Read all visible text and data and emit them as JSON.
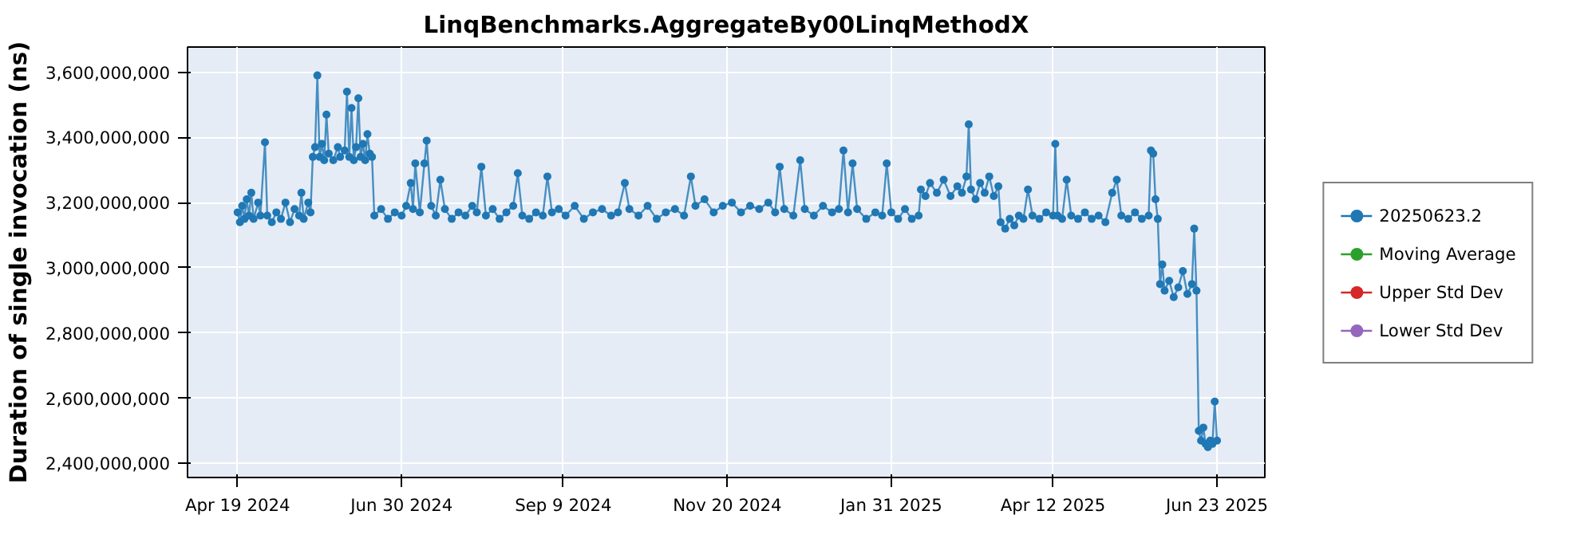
{
  "chart_data": {
    "type": "line",
    "title": "LinqBenchmarks.AggregateBy00LinqMethodX",
    "ylabel": "Duration of single invocation (ns)",
    "xlim": [
      "2024-03-28",
      "2025-07-14"
    ],
    "xticks": [
      {
        "value": "2024-04-19",
        "label": "Apr 19 2024"
      },
      {
        "value": "2024-06-30",
        "label": "Jun 30 2024"
      },
      {
        "value": "2024-09-09",
        "label": "Sep 9 2024"
      },
      {
        "value": "2024-11-20",
        "label": "Nov 20 2024"
      },
      {
        "value": "2025-01-31",
        "label": "Jan 31 2025"
      },
      {
        "value": "2025-04-12",
        "label": "Apr 12 2025"
      },
      {
        "value": "2025-06-23",
        "label": "Jun 23 2025"
      }
    ],
    "ylim": [
      2357000000,
      3677000000
    ],
    "yticks": [
      {
        "value": 2400000000,
        "label": "2,400,000,000"
      },
      {
        "value": 2600000000,
        "label": "2,600,000,000"
      },
      {
        "value": 2800000000,
        "label": "2,800,000,000"
      },
      {
        "value": 3000000000,
        "label": "3,000,000,000"
      },
      {
        "value": 3200000000,
        "label": "3,200,000,000"
      },
      {
        "value": 3400000000,
        "label": "3,400,000,000"
      },
      {
        "value": 3600000000,
        "label": "3,600,000,000"
      }
    ],
    "grid": true,
    "legend": "right",
    "marker": "circle",
    "line_style": "solid",
    "x": [
      "2024-04-19",
      "2024-04-20",
      "2024-04-21",
      "2024-04-22",
      "2024-04-23",
      "2024-04-24",
      "2024-04-25",
      "2024-04-26",
      "2024-04-28",
      "2024-04-29",
      "2024-05-01",
      "2024-05-02",
      "2024-05-04",
      "2024-05-06",
      "2024-05-08",
      "2024-05-10",
      "2024-05-12",
      "2024-05-14",
      "2024-05-16",
      "2024-05-17",
      "2024-05-18",
      "2024-05-20",
      "2024-05-21",
      "2024-05-22",
      "2024-05-23",
      "2024-05-24",
      "2024-05-25",
      "2024-05-26",
      "2024-05-27",
      "2024-05-28",
      "2024-05-29",
      "2024-05-31",
      "2024-06-02",
      "2024-06-03",
      "2024-06-05",
      "2024-06-06",
      "2024-06-07",
      "2024-06-08",
      "2024-06-09",
      "2024-06-10",
      "2024-06-11",
      "2024-06-12",
      "2024-06-13",
      "2024-06-14",
      "2024-06-15",
      "2024-06-16",
      "2024-06-17",
      "2024-06-18",
      "2024-06-21",
      "2024-06-24",
      "2024-06-27",
      "2024-06-30",
      "2024-07-02",
      "2024-07-04",
      "2024-07-05",
      "2024-07-06",
      "2024-07-08",
      "2024-07-10",
      "2024-07-11",
      "2024-07-13",
      "2024-07-15",
      "2024-07-17",
      "2024-07-19",
      "2024-07-22",
      "2024-07-25",
      "2024-07-28",
      "2024-07-31",
      "2024-08-02",
      "2024-08-04",
      "2024-08-06",
      "2024-08-09",
      "2024-08-12",
      "2024-08-15",
      "2024-08-18",
      "2024-08-20",
      "2024-08-22",
      "2024-08-25",
      "2024-08-28",
      "2024-08-31",
      "2024-09-02",
      "2024-09-04",
      "2024-09-07",
      "2024-09-10",
      "2024-09-14",
      "2024-09-18",
      "2024-09-22",
      "2024-09-26",
      "2024-09-30",
      "2024-10-03",
      "2024-10-06",
      "2024-10-08",
      "2024-10-12",
      "2024-10-16",
      "2024-10-20",
      "2024-10-24",
      "2024-10-28",
      "2024-11-01",
      "2024-11-04",
      "2024-11-06",
      "2024-11-10",
      "2024-11-14",
      "2024-11-18",
      "2024-11-22",
      "2024-11-26",
      "2024-11-30",
      "2024-12-04",
      "2024-12-08",
      "2024-12-11",
      "2024-12-13",
      "2024-12-15",
      "2024-12-19",
      "2024-12-22",
      "2024-12-24",
      "2024-12-28",
      "2025-01-01",
      "2025-01-05",
      "2025-01-08",
      "2025-01-10",
      "2025-01-12",
      "2025-01-14",
      "2025-01-16",
      "2025-01-20",
      "2025-01-24",
      "2025-01-27",
      "2025-01-29",
      "2025-01-31",
      "2025-02-03",
      "2025-02-06",
      "2025-02-09",
      "2025-02-12",
      "2025-02-13",
      "2025-02-15",
      "2025-02-17",
      "2025-02-20",
      "2025-02-23",
      "2025-02-26",
      "2025-03-01",
      "2025-03-03",
      "2025-03-05",
      "2025-03-06",
      "2025-03-07",
      "2025-03-09",
      "2025-03-11",
      "2025-03-13",
      "2025-03-15",
      "2025-03-17",
      "2025-03-19",
      "2025-03-20",
      "2025-03-22",
      "2025-03-24",
      "2025-03-26",
      "2025-03-28",
      "2025-03-30",
      "2025-04-01",
      "2025-04-03",
      "2025-04-06",
      "2025-04-09",
      "2025-04-12",
      "2025-04-13",
      "2025-04-14",
      "2025-04-16",
      "2025-04-18",
      "2025-04-20",
      "2025-04-23",
      "2025-04-26",
      "2025-04-29",
      "2025-05-02",
      "2025-05-05",
      "2025-05-08",
      "2025-05-10",
      "2025-05-12",
      "2025-05-15",
      "2025-05-18",
      "2025-05-21",
      "2025-05-24",
      "2025-05-25",
      "2025-05-26",
      "2025-05-27",
      "2025-05-28",
      "2025-05-29",
      "2025-05-30",
      "2025-05-31",
      "2025-06-02",
      "2025-06-04",
      "2025-06-06",
      "2025-06-08",
      "2025-06-10",
      "2025-06-12",
      "2025-06-13",
      "2025-06-14",
      "2025-06-15",
      "2025-06-16",
      "2025-06-17",
      "2025-06-18",
      "2025-06-19",
      "2025-06-20",
      "2025-06-21",
      "2025-06-22",
      "2025-06-23"
    ],
    "series": [
      {
        "name": "20250623.2",
        "color": "#1f77b4",
        "values": [
          3170000000,
          3140000000,
          3190000000,
          3150000000,
          3210000000,
          3160000000,
          3230000000,
          3150000000,
          3200000000,
          3160000000,
          3385000000,
          3160000000,
          3140000000,
          3170000000,
          3150000000,
          3200000000,
          3140000000,
          3180000000,
          3160000000,
          3230000000,
          3150000000,
          3200000000,
          3170000000,
          3340000000,
          3370000000,
          3590000000,
          3340000000,
          3380000000,
          3330000000,
          3470000000,
          3350000000,
          3330000000,
          3370000000,
          3340000000,
          3360000000,
          3540000000,
          3340000000,
          3490000000,
          3330000000,
          3370000000,
          3520000000,
          3340000000,
          3380000000,
          3330000000,
          3410000000,
          3350000000,
          3340000000,
          3160000000,
          3180000000,
          3150000000,
          3170000000,
          3160000000,
          3190000000,
          3260000000,
          3180000000,
          3320000000,
          3170000000,
          3320000000,
          3390000000,
          3190000000,
          3160000000,
          3270000000,
          3180000000,
          3150000000,
          3170000000,
          3160000000,
          3190000000,
          3170000000,
          3310000000,
          3160000000,
          3180000000,
          3150000000,
          3170000000,
          3190000000,
          3290000000,
          3160000000,
          3150000000,
          3170000000,
          3160000000,
          3280000000,
          3170000000,
          3180000000,
          3160000000,
          3190000000,
          3150000000,
          3170000000,
          3180000000,
          3160000000,
          3170000000,
          3260000000,
          3180000000,
          3160000000,
          3190000000,
          3150000000,
          3170000000,
          3180000000,
          3160000000,
          3280000000,
          3190000000,
          3210000000,
          3170000000,
          3190000000,
          3200000000,
          3170000000,
          3190000000,
          3180000000,
          3200000000,
          3170000000,
          3310000000,
          3180000000,
          3160000000,
          3330000000,
          3180000000,
          3160000000,
          3190000000,
          3170000000,
          3180000000,
          3360000000,
          3170000000,
          3320000000,
          3180000000,
          3150000000,
          3170000000,
          3160000000,
          3320000000,
          3170000000,
          3150000000,
          3180000000,
          3150000000,
          3160000000,
          3240000000,
          3220000000,
          3260000000,
          3230000000,
          3270000000,
          3220000000,
          3250000000,
          3230000000,
          3280000000,
          3440000000,
          3240000000,
          3210000000,
          3260000000,
          3230000000,
          3280000000,
          3220000000,
          3250000000,
          3140000000,
          3120000000,
          3150000000,
          3130000000,
          3160000000,
          3150000000,
          3240000000,
          3160000000,
          3150000000,
          3170000000,
          3160000000,
          3380000000,
          3160000000,
          3150000000,
          3270000000,
          3160000000,
          3150000000,
          3170000000,
          3150000000,
          3160000000,
          3140000000,
          3230000000,
          3270000000,
          3160000000,
          3150000000,
          3170000000,
          3150000000,
          3160000000,
          3360000000,
          3350000000,
          3210000000,
          3150000000,
          2950000000,
          3010000000,
          2930000000,
          2960000000,
          2910000000,
          2940000000,
          2990000000,
          2920000000,
          2950000000,
          3120000000,
          2930000000,
          2500000000,
          2470000000,
          2510000000,
          2460000000,
          2450000000,
          2470000000,
          2460000000,
          2590000000,
          2470000000
        ]
      },
      {
        "name": "Moving Average",
        "color": "#2ca02c",
        "values": [
          null,
          null,
          null,
          null,
          null,
          null,
          null,
          null,
          null,
          null,
          null,
          null,
          null,
          null,
          null,
          null,
          null,
          null,
          null,
          null,
          null,
          null,
          null,
          null,
          null,
          null,
          null,
          null,
          null,
          null,
          null,
          null,
          null,
          null,
          null,
          null,
          null,
          null,
          null,
          null,
          null,
          null,
          null,
          null,
          null,
          null,
          null,
          null,
          null,
          null,
          null,
          null,
          null,
          null,
          null,
          null,
          null,
          null,
          null,
          null,
          null,
          null,
          null,
          null,
          null,
          null,
          null,
          null,
          null,
          null,
          null,
          null,
          null,
          null,
          null,
          null,
          null,
          null,
          null,
          null,
          null,
          null,
          null,
          null,
          null,
          null,
          null,
          null,
          null,
          null,
          null,
          null,
          null,
          null,
          null,
          null,
          null,
          null,
          null,
          null,
          null,
          null,
          null,
          null,
          null,
          null,
          null,
          null,
          null,
          null,
          null,
          null,
          null,
          null,
          null,
          null,
          null,
          null,
          null,
          null,
          null,
          null,
          null,
          null,
          null,
          null,
          null,
          null,
          null,
          null,
          null,
          null,
          null,
          null,
          null,
          null,
          null,
          null,
          null,
          null,
          null,
          null,
          null,
          null,
          null,
          null,
          null,
          null,
          null,
          null,
          null,
          null,
          null,
          null,
          null,
          null,
          null,
          null,
          null,
          null,
          null,
          null,
          null,
          null,
          null,
          null,
          null,
          null,
          null,
          null,
          null,
          null,
          null,
          null,
          null,
          null,
          null,
          null,
          null,
          null,
          null,
          null,
          null,
          null,
          null,
          null,
          null,
          null,
          null,
          null,
          null,
          null,
          null,
          null,
          null,
          null,
          null,
          null,
          null
        ]
      },
      {
        "name": "Upper Std Dev",
        "color": "#d62728",
        "values": [
          null,
          null,
          null,
          null,
          null,
          null,
          null,
          null,
          null,
          null,
          null,
          null,
          null,
          null,
          null,
          null,
          null,
          null,
          null,
          null,
          null,
          null,
          null,
          null,
          null,
          null,
          null,
          null,
          null,
          null,
          null,
          null,
          null,
          null,
          null,
          null,
          null,
          null,
          null,
          null,
          null,
          null,
          null,
          null,
          null,
          null,
          null,
          null,
          null,
          null,
          null,
          null,
          null,
          null,
          null,
          null,
          null,
          null,
          null,
          null,
          null,
          null,
          null,
          null,
          null,
          null,
          null,
          null,
          null,
          null,
          null,
          null,
          null,
          null,
          null,
          null,
          null,
          null,
          null,
          null,
          null,
          null,
          null,
          null,
          null,
          null,
          null,
          null,
          null,
          null,
          null,
          null,
          null,
          null,
          null,
          null,
          null,
          null,
          null,
          null,
          null,
          null,
          null,
          null,
          null,
          null,
          null,
          null,
          null,
          null,
          null,
          null,
          null,
          null,
          null,
          null,
          null,
          null,
          null,
          null,
          null,
          null,
          null,
          null,
          null,
          null,
          null,
          null,
          null,
          null,
          null,
          null,
          null,
          null,
          null,
          null,
          null,
          null,
          null,
          null,
          null,
          null,
          null,
          null,
          null,
          null,
          null,
          null,
          null,
          null,
          null,
          null,
          null,
          null,
          null,
          null,
          null,
          null,
          null,
          null,
          null,
          null,
          null,
          null,
          null,
          null,
          null,
          null,
          null,
          null,
          null,
          null,
          null,
          null,
          null,
          null,
          null,
          null,
          null,
          null,
          null,
          null,
          null,
          null,
          null,
          null,
          null,
          null,
          null,
          null,
          null,
          null,
          null,
          null,
          null,
          null,
          null,
          null,
          null
        ]
      },
      {
        "name": "Lower Std Dev",
        "color": "#9467bd",
        "values": [
          null,
          null,
          null,
          null,
          null,
          null,
          null,
          null,
          null,
          null,
          null,
          null,
          null,
          null,
          null,
          null,
          null,
          null,
          null,
          null,
          null,
          null,
          null,
          null,
          null,
          null,
          null,
          null,
          null,
          null,
          null,
          null,
          null,
          null,
          null,
          null,
          null,
          null,
          null,
          null,
          null,
          null,
          null,
          null,
          null,
          null,
          null,
          null,
          null,
          null,
          null,
          null,
          null,
          null,
          null,
          null,
          null,
          null,
          null,
          null,
          null,
          null,
          null,
          null,
          null,
          null,
          null,
          null,
          null,
          null,
          null,
          null,
          null,
          null,
          null,
          null,
          null,
          null,
          null,
          null,
          null,
          null,
          null,
          null,
          null,
          null,
          null,
          null,
          null,
          null,
          null,
          null,
          null,
          null,
          null,
          null,
          null,
          null,
          null,
          null,
          null,
          null,
          null,
          null,
          null,
          null,
          null,
          null,
          null,
          null,
          null,
          null,
          null,
          null,
          null,
          null,
          null,
          null,
          null,
          null,
          null,
          null,
          null,
          null,
          null,
          null,
          null,
          null,
          null,
          null,
          null,
          null,
          null,
          null,
          null,
          null,
          null,
          null,
          null,
          null,
          null,
          null,
          null,
          null,
          null,
          null,
          null,
          null,
          null,
          null,
          null,
          null,
          null,
          null,
          null,
          null,
          null,
          null,
          null,
          null,
          null,
          null,
          null,
          null,
          null,
          null,
          null,
          null,
          null,
          null,
          null,
          null,
          null,
          null,
          null,
          null,
          null,
          null,
          null,
          null,
          null,
          null,
          null,
          null,
          null,
          null,
          null,
          null,
          null,
          null,
          null,
          null,
          null,
          null,
          null,
          null,
          null,
          null,
          null
        ]
      }
    ]
  }
}
